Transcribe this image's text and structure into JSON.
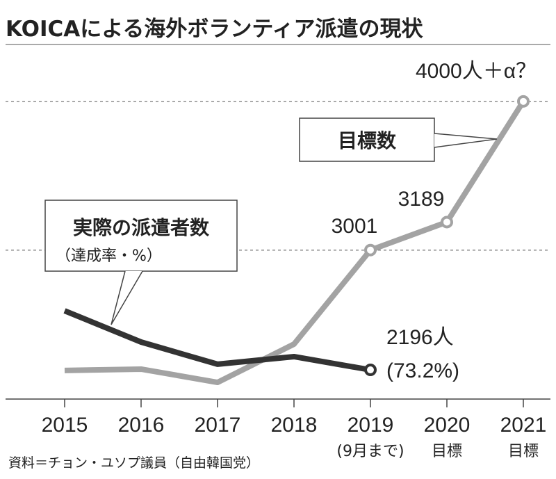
{
  "chart_data": {
    "type": "line",
    "title": "KOICAによる海外ボランティア派遣の現状",
    "source": "資料＝チョン・ユソプ議員（自由韓国党）",
    "categories": [
      "2015",
      "2016",
      "2017",
      "2018",
      "2019",
      "2020",
      "2021"
    ],
    "category_notes": [
      null,
      null,
      null,
      null,
      "(9月まで)",
      "目標",
      "目標"
    ],
    "series": [
      {
        "name": "目標数",
        "color": "#a3a3a3",
        "values": [
          2192,
          2201,
          2112,
          2369,
          3001,
          3189,
          4000
        ],
        "value_labels": [
          null,
          null,
          null,
          null,
          "3001",
          "3189",
          "4000人＋α？"
        ]
      },
      {
        "name": "実際の派遣者数",
        "subtitle": "（達成率・%）",
        "color": "#333333",
        "values": [
          2593,
          2383,
          2234,
          2285,
          2196,
          null,
          null
        ],
        "value_labels": [
          null,
          null,
          null,
          null,
          "2196人",
          null,
          null
        ],
        "notes": [
          null,
          null,
          null,
          null,
          "(73.2%)",
          null,
          null
        ]
      }
    ],
    "ylim": [
      2000,
      4200
    ],
    "gridlines": [
      2000,
      3000,
      4000
    ],
    "grid": true
  }
}
